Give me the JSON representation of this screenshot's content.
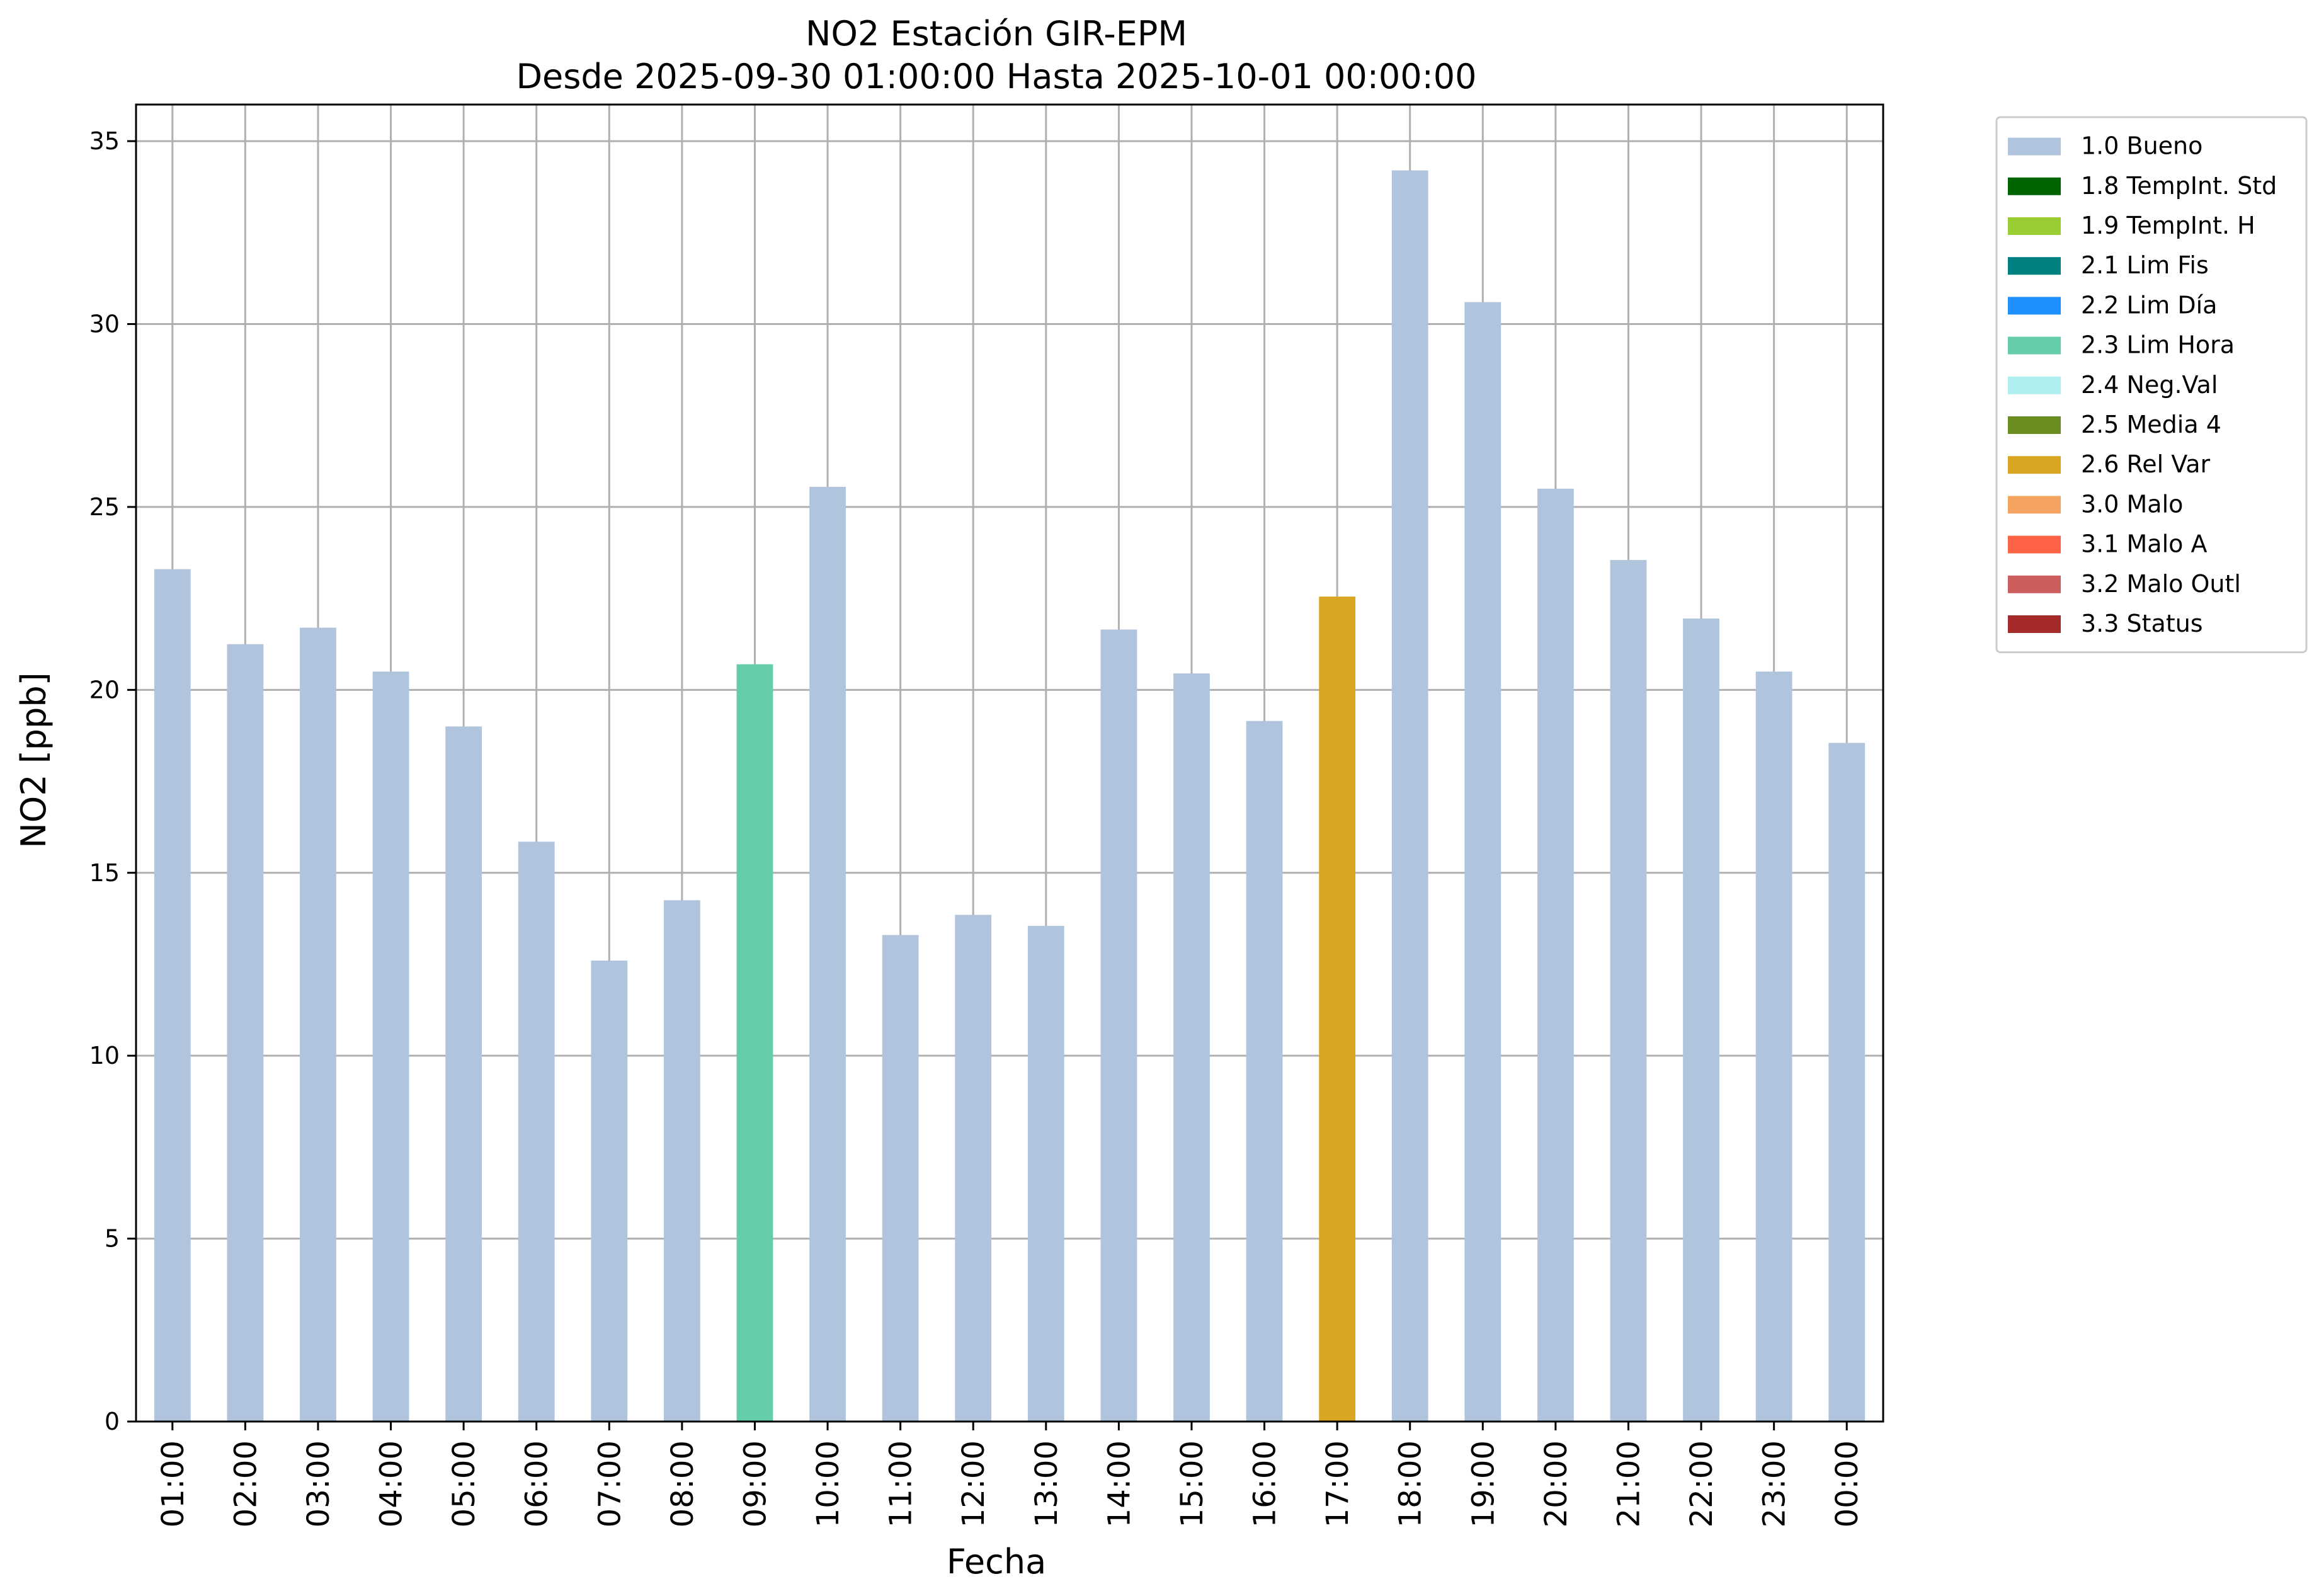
{
  "chart_data": {
    "type": "bar",
    "title": "NO2 Estación GIR-EPM",
    "subtitle": "Desde 2025-09-30 01:00:00 Hasta 2025-10-01 00:00:00",
    "xlabel": "Fecha",
    "ylabel": "NO2 [ppb]",
    "ylim": [
      0,
      36
    ],
    "yticks": [
      0,
      5,
      10,
      15,
      20,
      25,
      30,
      35
    ],
    "grid": true,
    "legend_position": "outside-top-right",
    "categories": [
      "01:00",
      "02:00",
      "03:00",
      "04:00",
      "05:00",
      "06:00",
      "07:00",
      "08:00",
      "09:00",
      "10:00",
      "11:00",
      "12:00",
      "13:00",
      "14:00",
      "15:00",
      "16:00",
      "17:00",
      "18:00",
      "19:00",
      "20:00",
      "21:00",
      "22:00",
      "23:00",
      "00:00"
    ],
    "values": [
      23.3,
      21.25,
      21.7,
      20.5,
      19.0,
      15.85,
      12.6,
      14.25,
      20.7,
      25.55,
      13.3,
      13.85,
      13.55,
      21.65,
      20.45,
      19.15,
      22.55,
      34.2,
      30.6,
      25.5,
      23.55,
      21.95,
      20.5,
      18.55
    ],
    "flags": [
      "1.0 Bueno",
      "1.0 Bueno",
      "1.0 Bueno",
      "1.0 Bueno",
      "1.0 Bueno",
      "1.0 Bueno",
      "1.0 Bueno",
      "1.0 Bueno",
      "2.3 Lim Hora",
      "1.0 Bueno",
      "1.0 Bueno",
      "1.0 Bueno",
      "1.0 Bueno",
      "1.0 Bueno",
      "1.0 Bueno",
      "1.0 Bueno",
      "2.6 Rel Var",
      "1.0 Bueno",
      "1.0 Bueno",
      "1.0 Bueno",
      "1.0 Bueno",
      "1.0 Bueno",
      "1.0 Bueno",
      "1.0 Bueno"
    ],
    "legend": [
      {
        "label": "1.0 Bueno",
        "color": "#b0c4de"
      },
      {
        "label": "1.8 TempInt. Std",
        "color": "#006400"
      },
      {
        "label": "1.9 TempInt. H",
        "color": "#9acd32"
      },
      {
        "label": "2.1 Lim Fis",
        "color": "#008080"
      },
      {
        "label": "2.2 Lim Día",
        "color": "#1e90ff"
      },
      {
        "label": "2.3 Lim Hora",
        "color": "#66cdaa"
      },
      {
        "label": "2.4 Neg.Val",
        "color": "#afeeee"
      },
      {
        "label": "2.5 Media 4",
        "color": "#6b8e23"
      },
      {
        "label": "2.6 Rel Var",
        "color": "#daa520"
      },
      {
        "label": "3.0 Malo",
        "color": "#f4a460"
      },
      {
        "label": "3.1 Malo A",
        "color": "#ff6347"
      },
      {
        "label": "3.2 Malo Outl",
        "color": "#cd5c5c"
      },
      {
        "label": "3.3 Status",
        "color": "#a52a2a"
      }
    ]
  }
}
